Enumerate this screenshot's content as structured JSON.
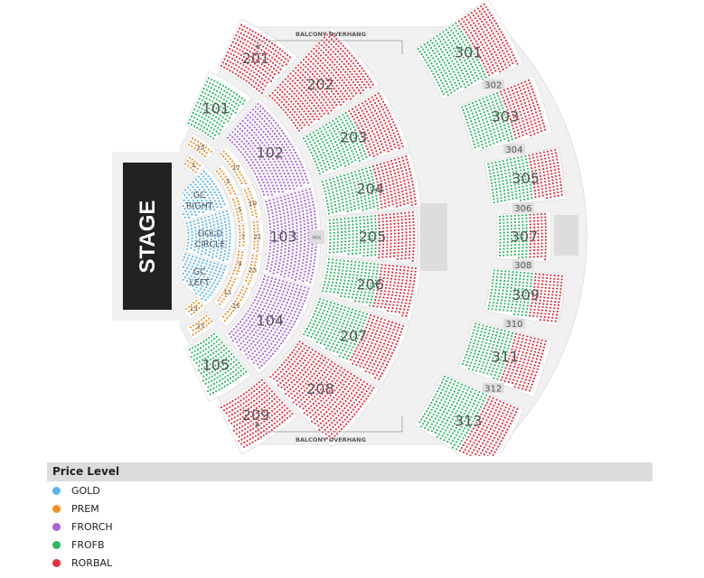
{
  "stage": {
    "label": "STAGE"
  },
  "balcony_overhang": {
    "top": "BALCONY OVERHANG",
    "bottom": "BALCONY OVERHANG"
  },
  "mix_label": "MIX",
  "price_levels": [
    {
      "name": "GOLD",
      "color": "#5bb4ee"
    },
    {
      "name": "PREM",
      "color": "#f0922b"
    },
    {
      "name": "FRORCH",
      "color": "#a862dc"
    },
    {
      "name": "FROFB",
      "color": "#2eb865"
    },
    {
      "name": "RORBAL",
      "color": "#e5313f"
    }
  ],
  "legend": {
    "title": "Price Level"
  },
  "sections": [
    {
      "id": "GCR",
      "label": "GC\nRIGHT",
      "levels": [
        "GOLD"
      ]
    },
    {
      "id": "GOLD",
      "label": "GOLD\nCIRCLE",
      "levels": [
        "GOLD"
      ]
    },
    {
      "id": "GCL",
      "label": "GC\nLEFT",
      "levels": [
        "GOLD"
      ]
    },
    {
      "id": "15",
      "label": "15",
      "levels": [
        "PREM"
      ]
    },
    {
      "id": "1",
      "label": "1",
      "levels": [
        "PREM"
      ]
    },
    {
      "id": "3",
      "label": "3",
      "levels": [
        "PREM"
      ]
    },
    {
      "id": "5",
      "label": "5",
      "levels": [
        "PREM"
      ]
    },
    {
      "id": "7",
      "label": "7",
      "levels": [
        "PREM"
      ]
    },
    {
      "id": "9",
      "label": "9",
      "levels": [
        "PREM"
      ]
    },
    {
      "id": "11",
      "label": "11",
      "levels": [
        "PREM"
      ]
    },
    {
      "id": "13",
      "label": "13",
      "levels": [
        "PREM"
      ]
    },
    {
      "id": "27",
      "label": "27",
      "levels": [
        "PREM"
      ]
    },
    {
      "id": "17",
      "label": "17",
      "levels": [
        "PREM"
      ]
    },
    {
      "id": "19",
      "label": "19",
      "levels": [
        "PREM"
      ]
    },
    {
      "id": "21",
      "label": "21",
      "levels": [
        "PREM"
      ]
    },
    {
      "id": "23",
      "label": "23",
      "levels": [
        "PREM"
      ]
    },
    {
      "id": "25",
      "label": "25",
      "levels": [
        "PREM"
      ]
    },
    {
      "id": "101",
      "label": "101",
      "levels": [
        "FROFB"
      ]
    },
    {
      "id": "102",
      "label": "102",
      "levels": [
        "FRORCH"
      ]
    },
    {
      "id": "103",
      "label": "103",
      "levels": [
        "FRORCH"
      ]
    },
    {
      "id": "104",
      "label": "104",
      "levels": [
        "FRORCH"
      ]
    },
    {
      "id": "105",
      "label": "105",
      "levels": [
        "FROFB"
      ]
    },
    {
      "id": "201",
      "label": "201",
      "levels": [
        "RORBAL"
      ]
    },
    {
      "id": "202",
      "label": "202",
      "levels": [
        "RORBAL"
      ]
    },
    {
      "id": "203",
      "label": "203",
      "levels": [
        "FROFB",
        "RORBAL"
      ]
    },
    {
      "id": "204",
      "label": "204",
      "levels": [
        "FROFB",
        "RORBAL"
      ]
    },
    {
      "id": "205",
      "label": "205",
      "levels": [
        "FROFB",
        "RORBAL"
      ]
    },
    {
      "id": "206",
      "label": "206",
      "levels": [
        "FROFB",
        "RORBAL"
      ]
    },
    {
      "id": "207",
      "label": "207",
      "levels": [
        "FROFB",
        "RORBAL"
      ]
    },
    {
      "id": "208",
      "label": "208",
      "levels": [
        "RORBAL"
      ]
    },
    {
      "id": "209",
      "label": "209",
      "levels": [
        "RORBAL"
      ]
    },
    {
      "id": "301",
      "label": "301",
      "levels": [
        "FROFB",
        "RORBAL"
      ]
    },
    {
      "id": "303",
      "label": "303",
      "levels": [
        "FROFB",
        "RORBAL"
      ]
    },
    {
      "id": "305",
      "label": "305",
      "levels": [
        "FROFB",
        "RORBAL"
      ]
    },
    {
      "id": "307",
      "label": "307",
      "levels": [
        "FROFB",
        "RORBAL"
      ]
    },
    {
      "id": "309",
      "label": "309",
      "levels": [
        "FROFB",
        "RORBAL"
      ]
    },
    {
      "id": "311",
      "label": "311",
      "levels": [
        "FROFB",
        "RORBAL"
      ]
    },
    {
      "id": "313",
      "label": "313",
      "levels": [
        "FROFB",
        "RORBAL"
      ]
    }
  ],
  "box_labels": [
    "302",
    "304",
    "306",
    "308",
    "310",
    "312"
  ]
}
